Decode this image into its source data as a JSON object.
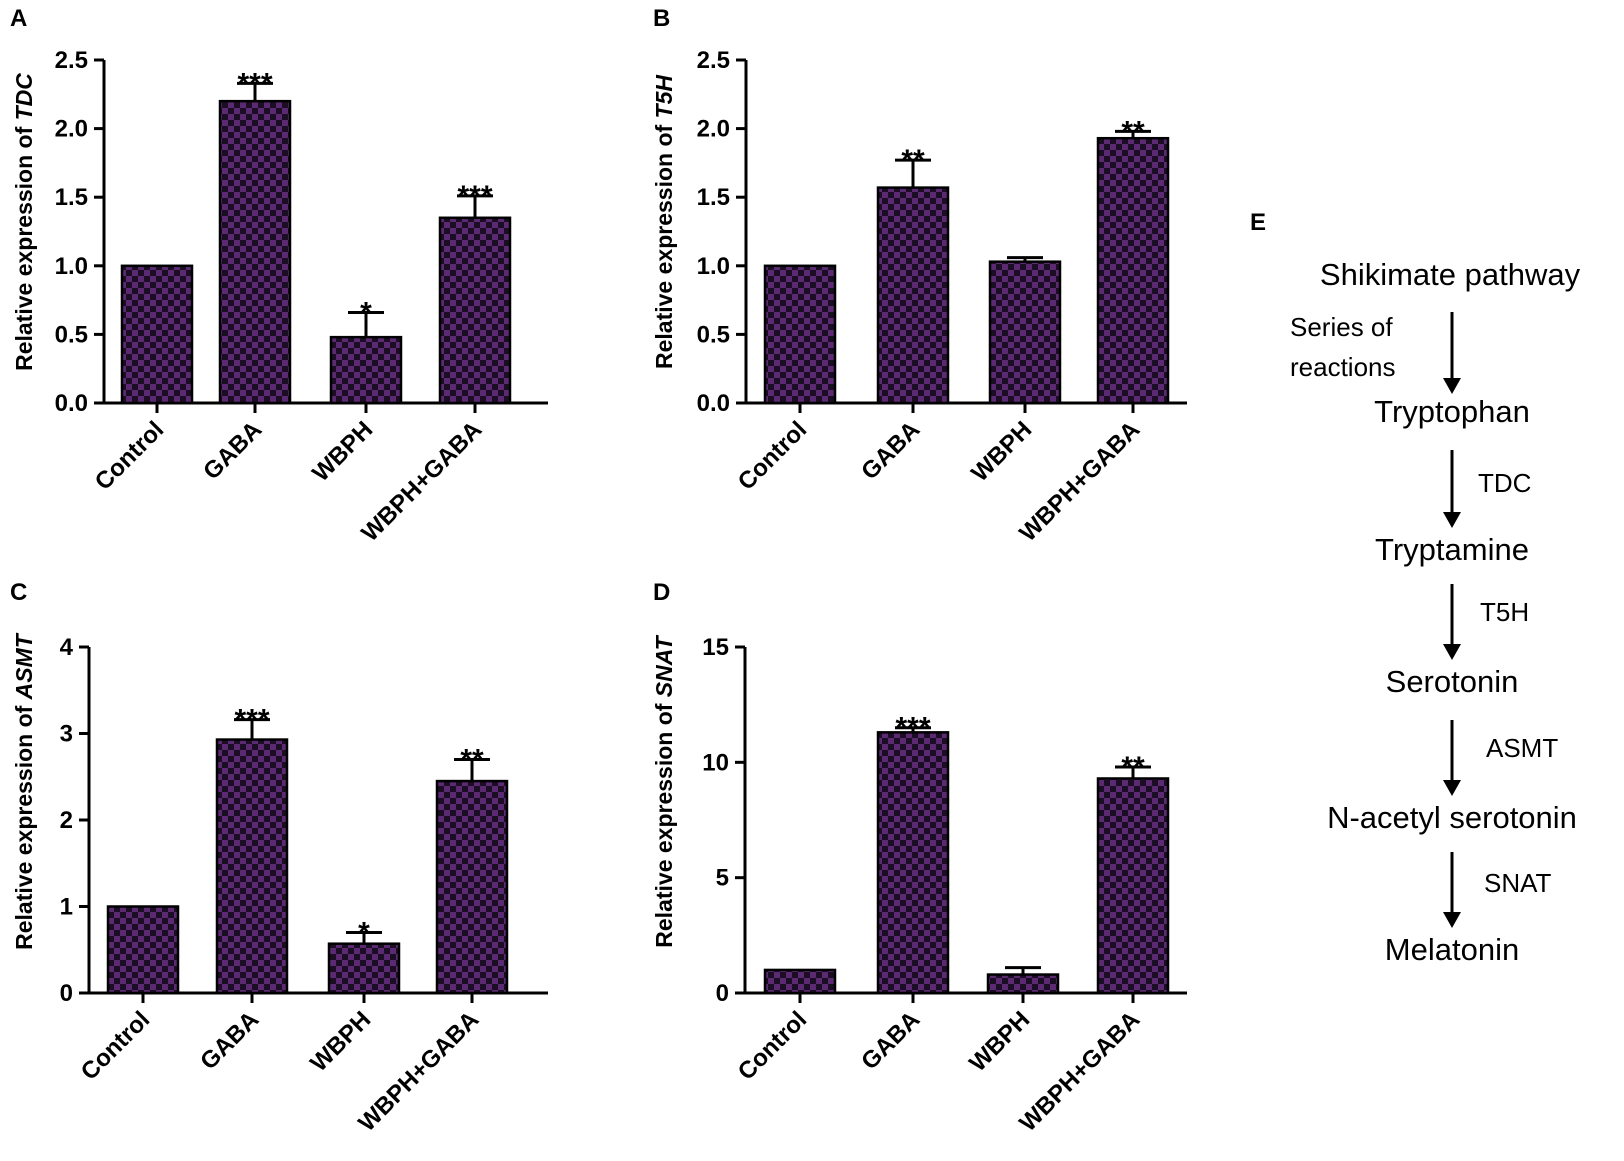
{
  "chart_data": [
    {
      "panel": "A",
      "type": "bar",
      "categories": [
        "Control",
        "GABA",
        "WBPH",
        "WBPH+GABA"
      ],
      "values": [
        1.0,
        2.2,
        0.48,
        1.35
      ],
      "errors": [
        0.0,
        0.13,
        0.18,
        0.16
      ],
      "significance": [
        "",
        "***",
        "*",
        "***"
      ],
      "ylabel_prefix": "Relative expression of ",
      "ylabel_gene": "TDC",
      "ylim": [
        0,
        2.5
      ],
      "yticks": [
        "0.0",
        "0.5",
        "1.0",
        "1.5",
        "2.0",
        "2.5"
      ],
      "bar_color": "#5b2a72"
    },
    {
      "panel": "B",
      "type": "bar",
      "categories": [
        "Control",
        "GABA",
        "WBPH",
        "WBPH+GABA"
      ],
      "values": [
        1.0,
        1.57,
        1.03,
        1.93
      ],
      "errors": [
        0.0,
        0.2,
        0.03,
        0.05
      ],
      "significance": [
        "",
        "**",
        "",
        "**"
      ],
      "ylabel_prefix": "Relative expression of ",
      "ylabel_gene": "T5H",
      "ylim": [
        0,
        2.5
      ],
      "yticks": [
        "0.0",
        "0.5",
        "1.0",
        "1.5",
        "2.0",
        "2.5"
      ],
      "bar_color": "#5b2a72"
    },
    {
      "panel": "C",
      "type": "bar",
      "categories": [
        "Control",
        "GABA",
        "WBPH",
        "WBPH+GABA"
      ],
      "values": [
        1.0,
        2.93,
        0.57,
        2.45
      ],
      "errors": [
        0.0,
        0.23,
        0.13,
        0.25
      ],
      "significance": [
        "",
        "***",
        "*",
        "**"
      ],
      "ylabel_prefix": "Relative expression of ",
      "ylabel_gene": "ASMT",
      "ylim": [
        0,
        4
      ],
      "yticks": [
        "0",
        "1",
        "2",
        "3",
        "4"
      ],
      "bar_color": "#5b2a72"
    },
    {
      "panel": "D",
      "type": "bar",
      "categories": [
        "Control",
        "GABA",
        "WBPH",
        "WBPH+GABA"
      ],
      "values": [
        1.0,
        11.3,
        0.8,
        9.3
      ],
      "errors": [
        0.0,
        0.2,
        0.3,
        0.5
      ],
      "significance": [
        "",
        "***",
        "",
        "**"
      ],
      "ylabel_prefix": "Relative expression of ",
      "ylabel_gene": "SNAT",
      "ylim": [
        0,
        15
      ],
      "yticks": [
        "0",
        "5",
        "10",
        "15"
      ],
      "bar_color": "#5b2a72"
    }
  ],
  "pathway": {
    "panel": "E",
    "nodes": [
      "Shikimate pathway",
      "Tryptophan",
      "Tryptamine",
      "Serotonin",
      "N-acetyl serotonin",
      "Melatonin"
    ],
    "enzymes": [
      "Series of",
      "reactions",
      "TDC",
      "T5H",
      "ASMT",
      "SNAT"
    ]
  },
  "colors": {
    "bar_fill": "#5b2a72",
    "bar_check": "#1a0d24",
    "axis": "#000000"
  }
}
